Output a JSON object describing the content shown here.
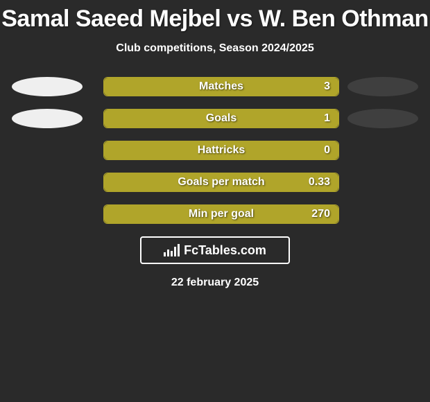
{
  "title": "Samal Saeed Mejbel vs W. Ben Othman",
  "subtitle": "Club competitions, Season 2024/2025",
  "colors": {
    "background": "#2a2a2a",
    "left_ellipse": "#efefef",
    "right_ellipse": "#3f3f3f",
    "bar_fill": "#b0a52a",
    "bar_border": "#b0a52a",
    "text": "#ffffff"
  },
  "bars": [
    {
      "label": "Matches",
      "value": "3",
      "fill_pct": 100,
      "show_left": true,
      "show_right": true
    },
    {
      "label": "Goals",
      "value": "1",
      "fill_pct": 100,
      "show_left": true,
      "show_right": true
    },
    {
      "label": "Hattricks",
      "value": "0",
      "fill_pct": 100,
      "show_left": false,
      "show_right": false
    },
    {
      "label": "Goals per match",
      "value": "0.33",
      "fill_pct": 100,
      "show_left": false,
      "show_right": false
    },
    {
      "label": "Min per goal",
      "value": "270",
      "fill_pct": 100,
      "show_left": false,
      "show_right": false
    }
  ],
  "branding": "FcTables.com",
  "date": "22 february 2025"
}
